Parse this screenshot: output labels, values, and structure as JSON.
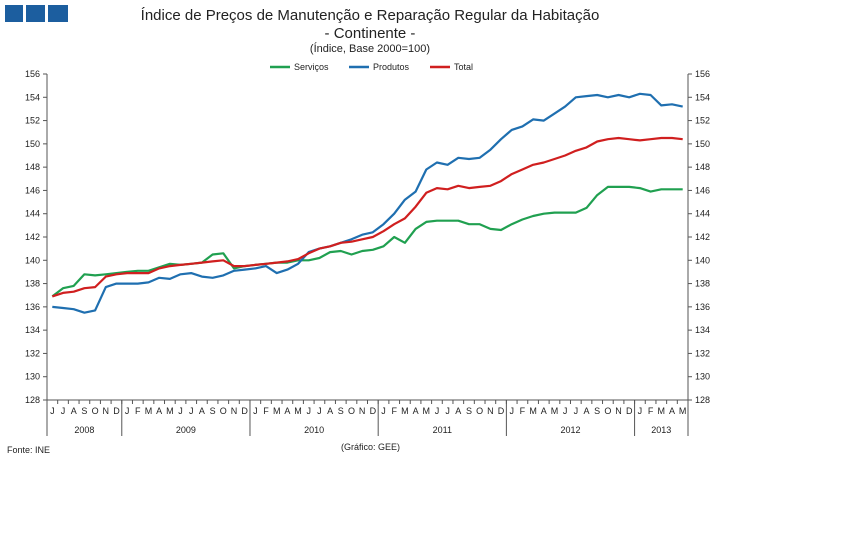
{
  "header": {
    "title_line1": "Índice de Preços de Manutenção e Reparação Regular da Habitação",
    "title_line2": "- Continente -",
    "subtitle": "(Índice, Base 2000=100)"
  },
  "footer": {
    "source": "Fonte: INE",
    "credit": "(Gráfico: GEE)"
  },
  "colors": {
    "logo": "#1c5e9f",
    "servicos": "#20a050",
    "produtos": "#1f6fb0",
    "total": "#d01f1f",
    "axis": "#555555"
  },
  "chart_data": {
    "type": "line",
    "title": "Índice de Preços de Manutenção e Reparação Regular da Habitação - Continente -",
    "ylabel": "(Índice, Base 2000=100)",
    "ylim": [
      128,
      156
    ],
    "yticks": [
      128,
      130,
      132,
      134,
      136,
      138,
      140,
      142,
      144,
      146,
      148,
      150,
      152,
      154,
      156
    ],
    "legend_position": "top-center",
    "month_labels": [
      "J",
      "J",
      "A",
      "S",
      "O",
      "N",
      "D",
      "J",
      "F",
      "M",
      "A",
      "M",
      "J",
      "J",
      "A",
      "S",
      "O",
      "N",
      "D",
      "J",
      "F",
      "M",
      "A",
      "M",
      "J",
      "J",
      "A",
      "S",
      "O",
      "N",
      "D",
      "J",
      "F",
      "M",
      "A",
      "M",
      "J",
      "J",
      "A",
      "S",
      "O",
      "N",
      "D",
      "J",
      "F",
      "M",
      "A",
      "M",
      "J",
      "J",
      "A",
      "S",
      "O",
      "N",
      "D",
      "J",
      "F",
      "M",
      "A",
      "M"
    ],
    "years": [
      {
        "label": "2008",
        "start": 0,
        "end": 7
      },
      {
        "label": "2009",
        "start": 7,
        "end": 19
      },
      {
        "label": "2010",
        "start": 19,
        "end": 31
      },
      {
        "label": "2011",
        "start": 31,
        "end": 43
      },
      {
        "label": "2012",
        "start": 43,
        "end": 55
      },
      {
        "label": "2013",
        "start": 55,
        "end": 60
      }
    ],
    "series": [
      {
        "name": "Serviços",
        "color": "#20a050",
        "values": [
          136.9,
          137.6,
          137.8,
          138.8,
          138.7,
          138.8,
          138.9,
          139.0,
          139.1,
          139.1,
          139.4,
          139.7,
          139.6,
          139.7,
          139.8,
          140.5,
          140.6,
          139.3,
          139.5,
          139.6,
          139.7,
          139.8,
          139.8,
          140.0,
          140.0,
          140.2,
          140.7,
          140.8,
          140.5,
          140.8,
          140.9,
          141.2,
          142.0,
          141.5,
          142.7,
          143.3,
          143.4,
          143.4,
          143.4,
          143.1,
          143.1,
          142.7,
          142.6,
          143.1,
          143.5,
          143.8,
          144.0,
          144.1,
          144.1,
          144.1,
          144.5,
          145.6,
          146.3,
          146.3,
          146.3,
          146.2,
          145.9,
          146.1,
          146.1,
          146.1
        ]
      },
      {
        "name": "Produtos",
        "color": "#1f6fb0",
        "values": [
          136.0,
          135.9,
          135.8,
          135.5,
          135.7,
          137.7,
          138.0,
          138.0,
          138.0,
          138.1,
          138.5,
          138.4,
          138.8,
          138.9,
          138.6,
          138.5,
          138.7,
          139.1,
          139.2,
          139.3,
          139.5,
          138.9,
          139.2,
          139.7,
          140.7,
          141.0,
          141.2,
          141.5,
          141.8,
          142.2,
          142.4,
          143.1,
          144.0,
          145.2,
          145.9,
          147.8,
          148.4,
          148.2,
          148.8,
          148.7,
          148.8,
          149.5,
          150.4,
          151.2,
          151.5,
          152.1,
          152.0,
          152.6,
          153.2,
          154.0,
          154.1,
          154.2,
          154.0,
          154.2,
          154.0,
          154.3,
          154.2,
          153.3,
          153.4,
          153.2
        ]
      },
      {
        "name": "Total",
        "color": "#d01f1f",
        "values": [
          136.9,
          137.2,
          137.3,
          137.6,
          137.7,
          138.6,
          138.8,
          138.9,
          138.9,
          138.9,
          139.3,
          139.5,
          139.6,
          139.7,
          139.8,
          139.9,
          140.0,
          139.5,
          139.5,
          139.6,
          139.7,
          139.8,
          139.9,
          140.1,
          140.6,
          141.0,
          141.2,
          141.5,
          141.6,
          141.8,
          142.0,
          142.5,
          143.1,
          143.6,
          144.6,
          145.8,
          146.2,
          146.1,
          146.4,
          146.2,
          146.3,
          146.4,
          146.8,
          147.4,
          147.8,
          148.2,
          148.4,
          148.7,
          149.0,
          149.4,
          149.7,
          150.2,
          150.4,
          150.5,
          150.4,
          150.3,
          150.4,
          150.5,
          150.5,
          150.4
        ]
      }
    ]
  }
}
